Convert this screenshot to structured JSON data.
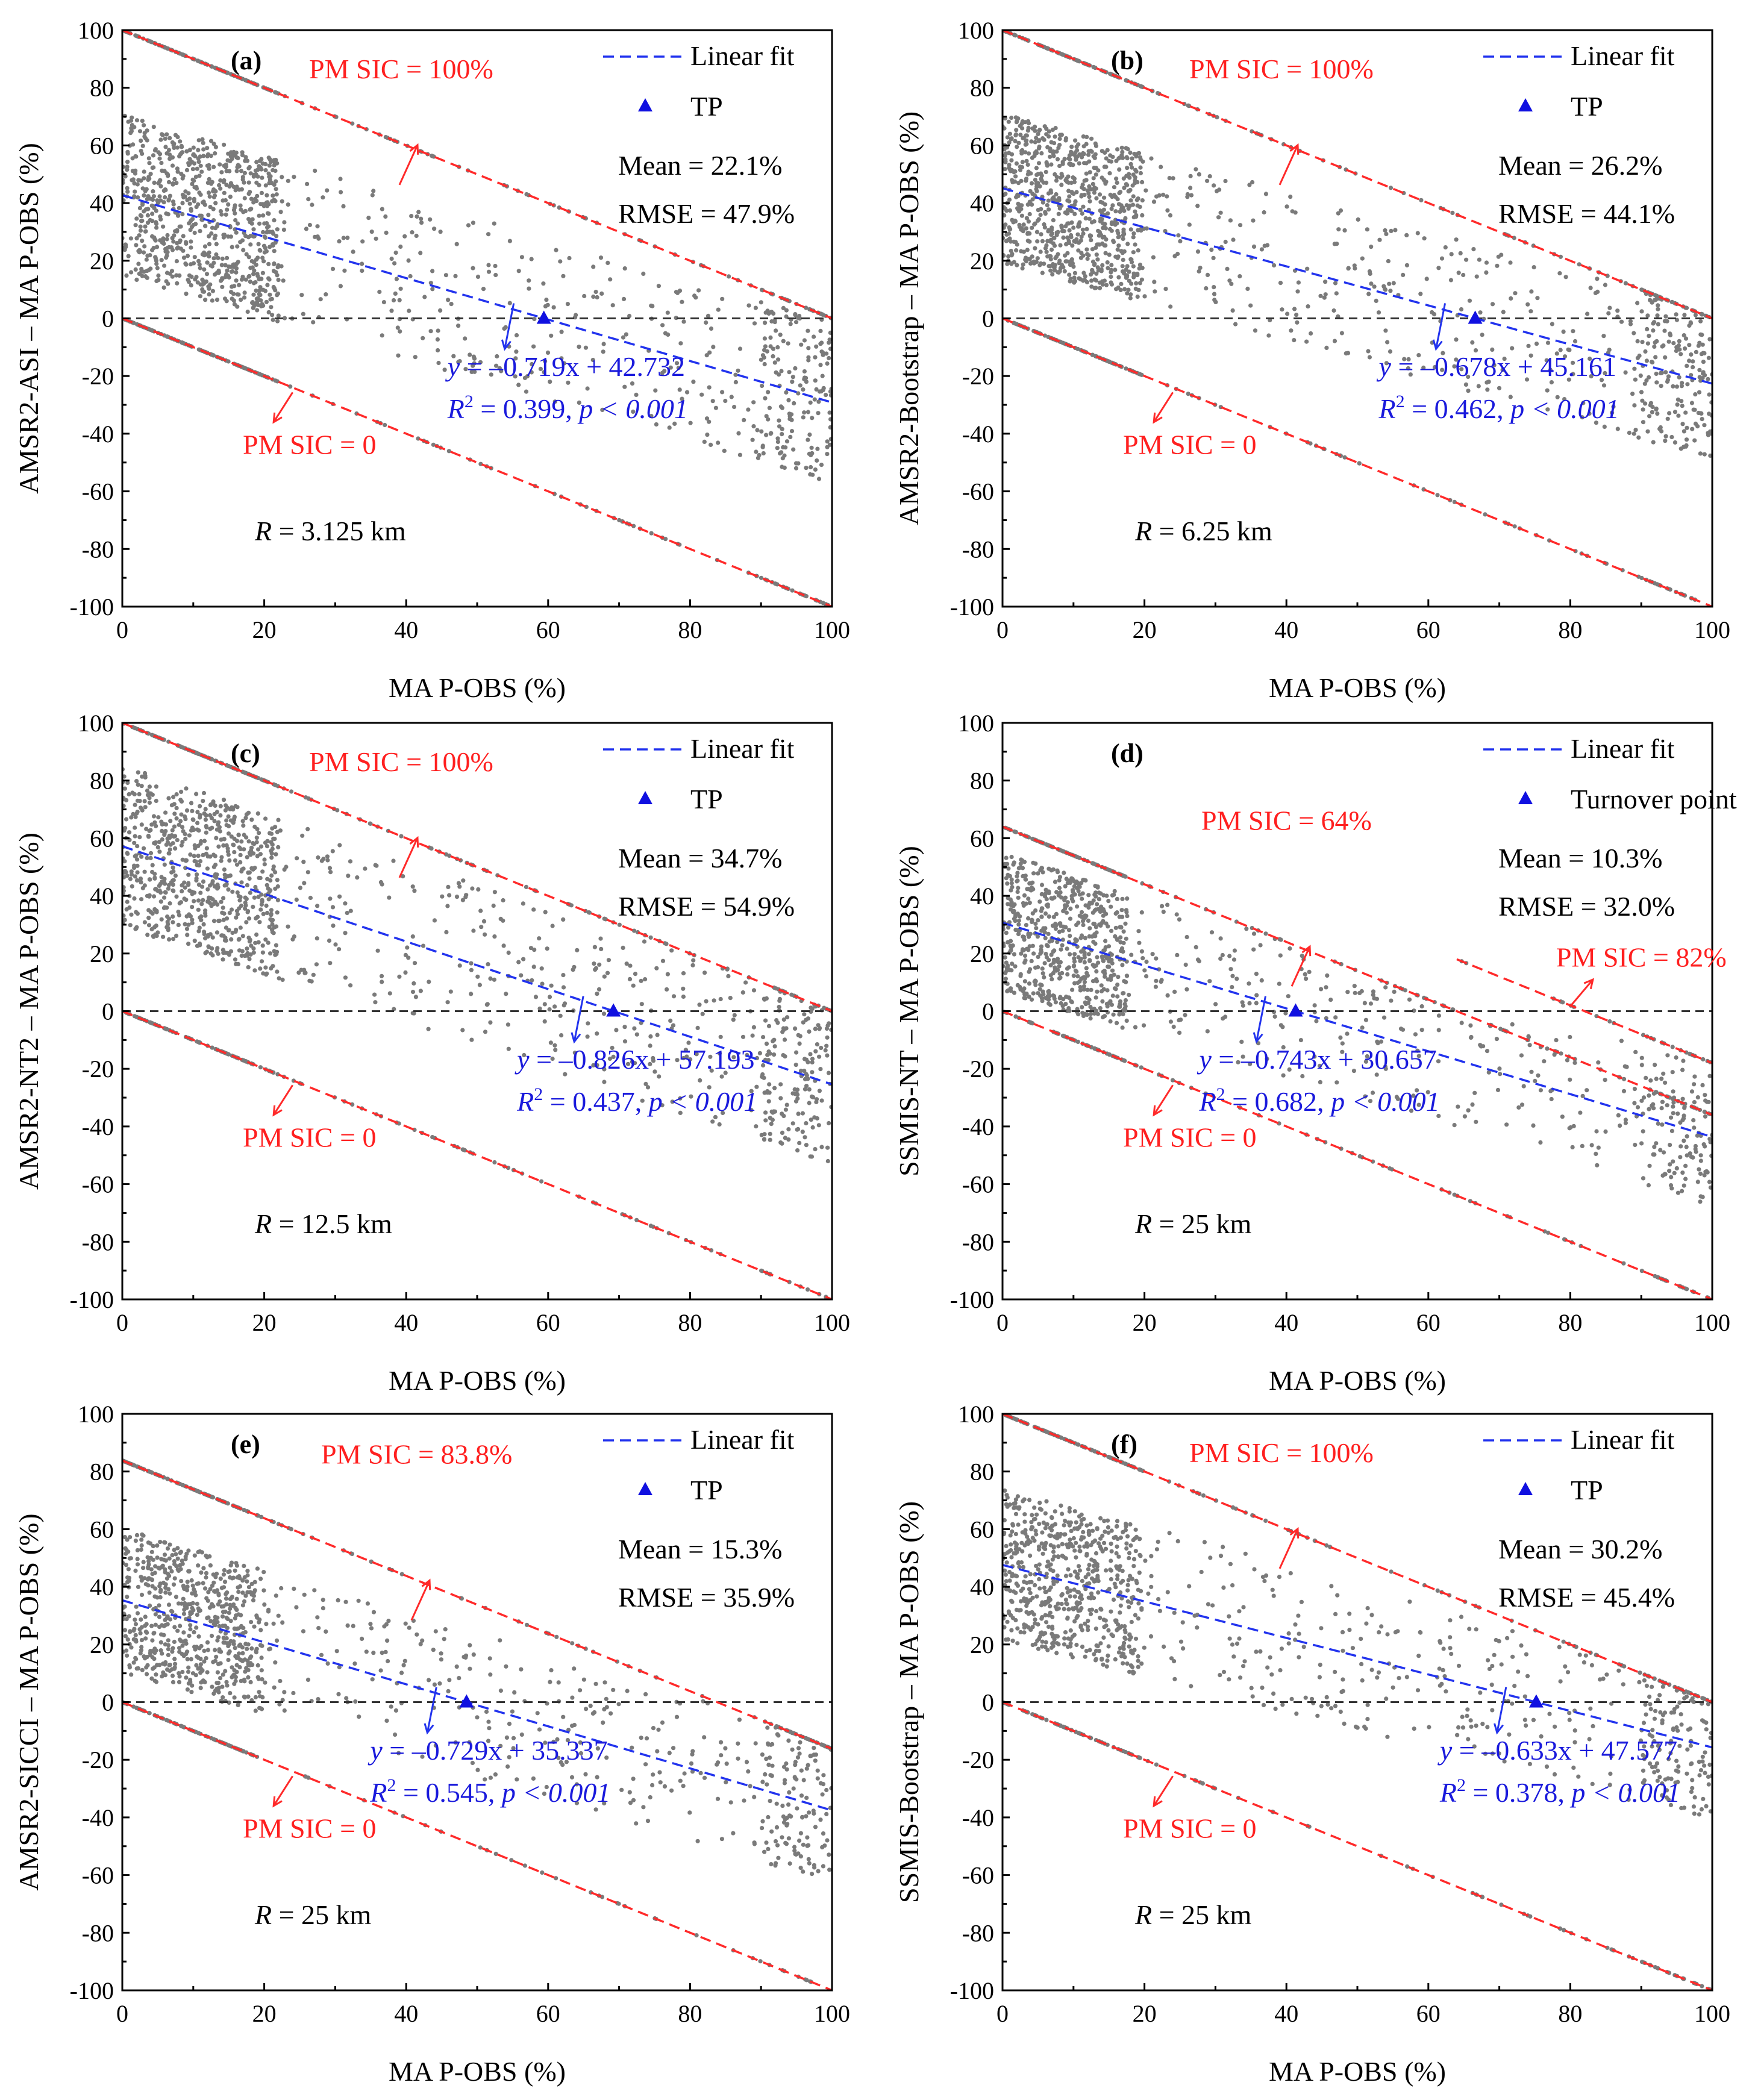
{
  "figure": {
    "x_label": "MA P-OBS (%)",
    "legend_fit": "Linear fit",
    "tick_labels_x": [
      "0",
      "20",
      "40",
      "60",
      "80",
      "100"
    ],
    "tick_labels_y": [
      "100",
      "80",
      "60",
      "40",
      "20",
      "0",
      "-20",
      "-40",
      "-60",
      "-80",
      "-100"
    ]
  },
  "chart_data": [
    {
      "type": "scatter",
      "panel": "(a)",
      "ylabel": "AMSR2-ASI – MA P-OBS (%)",
      "xlabel": "MA P-OBS (%)",
      "xlim": [
        0,
        100
      ],
      "ylim": [
        -100,
        100
      ],
      "legend": [
        "Linear fit",
        "TP"
      ],
      "upper_bound": {
        "label": "PM SIC = 100%",
        "sic": 100
      },
      "upper_bound2": null,
      "lower_bound": {
        "label": "PM SIC = 0",
        "sic": 0
      },
      "fit": {
        "slope": -0.719,
        "intercept": 42.732,
        "eq_prefix": "y",
        "eq_body": " = –0.719x + 42.732",
        "r2_text": " = 0.399, ",
        "p_text": "p < 0.001"
      },
      "turnover_point": {
        "label": "TP",
        "x": 59.4,
        "y": 0
      },
      "stats": {
        "mean": "Mean = 22.1%",
        "rmse": "RMSE = 47.9%"
      },
      "radius": {
        "value": " = 3.125 km"
      },
      "point_cloud": {
        "n": 1600,
        "x_center": 10,
        "spread": 28,
        "seed": 11
      }
    },
    {
      "type": "scatter",
      "panel": "(b)",
      "ylabel": "AMSR2-Bootstrap – MA P-OBS (%)",
      "xlabel": "MA P-OBS (%)",
      "xlim": [
        0,
        100
      ],
      "ylim": [
        -100,
        100
      ],
      "legend": [
        "Linear fit",
        "TP"
      ],
      "upper_bound": {
        "label": "PM SIC = 100%",
        "sic": 100
      },
      "upper_bound2": null,
      "lower_bound": {
        "label": "PM SIC = 0",
        "sic": 0
      },
      "fit": {
        "slope": -0.678,
        "intercept": 45.161,
        "eq_prefix": "y",
        "eq_body": " = –0.678x + 45.161",
        "r2_text": " = 0.462, ",
        "p_text": "p < 0.001"
      },
      "turnover_point": {
        "label": "TP",
        "x": 66.6,
        "y": 0
      },
      "stats": {
        "mean": "Mean = 26.2%",
        "rmse": "RMSE = 44.1%"
      },
      "radius": {
        "value": " = 6.25 km"
      },
      "point_cloud": {
        "n": 1600,
        "x_center": 9,
        "spread": 26,
        "seed": 23
      }
    },
    {
      "type": "scatter",
      "panel": "(c)",
      "ylabel": "AMSR2-NT2 – MA P-OBS (%)",
      "xlabel": "MA P-OBS (%)",
      "xlim": [
        0,
        100
      ],
      "ylim": [
        -100,
        100
      ],
      "legend": [
        "Linear fit",
        "TP"
      ],
      "upper_bound": {
        "label": "PM SIC = 100%",
        "sic": 100
      },
      "upper_bound2": null,
      "lower_bound": {
        "label": "PM SIC = 0",
        "sic": 0
      },
      "fit": {
        "slope": -0.826,
        "intercept": 57.193,
        "eq_prefix": "y",
        "eq_body": " = –0.826x + 57.193",
        "r2_text": " = 0.437, ",
        "p_text": "p < 0.001"
      },
      "turnover_point": {
        "label": "TP",
        "x": 69.2,
        "y": 0
      },
      "stats": {
        "mean": "Mean = 34.7%",
        "rmse": "RMSE = 54.9%"
      },
      "radius": {
        "value": " = 12.5 km"
      },
      "point_cloud": {
        "n": 1500,
        "x_center": 10,
        "spread": 28,
        "seed": 37
      }
    },
    {
      "type": "scatter",
      "panel": "(d)",
      "ylabel": "SSMIS-NT – MA P-OBS (%)",
      "xlabel": "MA P-OBS (%)",
      "xlim": [
        0,
        100
      ],
      "ylim": [
        -100,
        100
      ],
      "legend": [
        "Linear fit",
        "Turnover point"
      ],
      "upper_bound": {
        "label": "PM SIC = 64%",
        "sic": 64
      },
      "upper_bound2": {
        "label": "PM SIC = 82%",
        "sic": 82,
        "x_start": 64
      },
      "lower_bound": {
        "label": "PM SIC = 0",
        "sic": 0
      },
      "fit": {
        "slope": -0.743,
        "intercept": 30.657,
        "eq_prefix": "y",
        "eq_body": " = –0.743x + 30.657",
        "r2_text": " = 0.682, ",
        "p_text": "p < 0.001"
      },
      "turnover_point": {
        "label": "Turnover point",
        "x": 41.3,
        "y": 0
      },
      "stats": {
        "mean": "Mean = 10.3%",
        "rmse": "RMSE = 32.0%"
      },
      "radius": {
        "value": " = 25 km"
      },
      "point_cloud": {
        "n": 1300,
        "x_center": 8,
        "spread": 24,
        "seed": 53
      }
    },
    {
      "type": "scatter",
      "panel": "(e)",
      "ylabel": "AMSR2-SICCI – MA P-OBS (%)",
      "xlabel": "MA P-OBS (%)",
      "xlim": [
        0,
        100
      ],
      "ylim": [
        -100,
        100
      ],
      "legend": [
        "Linear fit",
        "TP"
      ],
      "upper_bound": {
        "label": "PM SIC = 83.8%",
        "sic": 83.8
      },
      "upper_bound2": null,
      "lower_bound": {
        "label": "PM SIC = 0",
        "sic": 0
      },
      "fit": {
        "slope": -0.729,
        "intercept": 35.337,
        "eq_prefix": "y",
        "eq_body": " = –0.729x + 35.337",
        "r2_text": " = 0.545, ",
        "p_text": "p < 0.001"
      },
      "turnover_point": {
        "label": "TP",
        "x": 48.5,
        "y": 0
      },
      "stats": {
        "mean": "Mean = 15.3%",
        "rmse": "RMSE = 35.9%"
      },
      "radius": {
        "value": " = 25 km"
      },
      "point_cloud": {
        "n": 1300,
        "x_center": 9,
        "spread": 25,
        "seed": 71
      }
    },
    {
      "type": "scatter",
      "panel": "(f)",
      "ylabel": "SSMIS-Bootstrap – MA P-OBS (%)",
      "xlabel": "MA P-OBS (%)",
      "xlim": [
        0,
        100
      ],
      "ylim": [
        -100,
        100
      ],
      "legend": [
        "Linear fit",
        "TP"
      ],
      "upper_bound": {
        "label": "PM SIC = 100%",
        "sic": 100
      },
      "upper_bound2": null,
      "lower_bound": {
        "label": "PM SIC = 0",
        "sic": 0
      },
      "fit": {
        "slope": -0.633,
        "intercept": 47.577,
        "eq_prefix": "y",
        "eq_body": " = –0.633x + 47.577",
        "r2_text": " = 0.378, ",
        "p_text": "p < 0.001"
      },
      "turnover_point": {
        "label": "TP",
        "x": 75.2,
        "y": 0
      },
      "stats": {
        "mean": "Mean = 30.2%",
        "rmse": "RMSE = 45.4%"
      },
      "radius": {
        "value": " = 25 km"
      },
      "point_cloud": {
        "n": 1300,
        "x_center": 9,
        "spread": 26,
        "seed": 97
      }
    }
  ]
}
